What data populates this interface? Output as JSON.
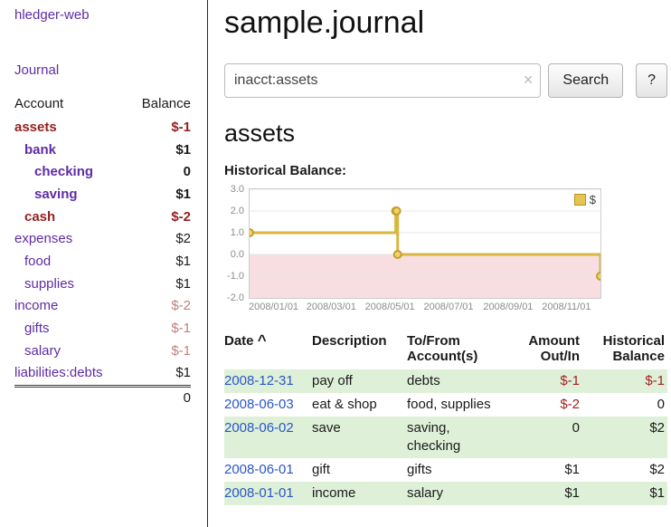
{
  "app": {
    "title": "hledger-web",
    "nav": {
      "journal": "Journal"
    }
  },
  "sidebar": {
    "columns": {
      "account": "Account",
      "balance": "Balance"
    },
    "accounts": [
      {
        "name": "assets",
        "balance": "$-1",
        "indent": 0,
        "bold": true,
        "negative": true
      },
      {
        "name": "bank",
        "balance": "$1",
        "indent": 1,
        "bold": true,
        "negative": false
      },
      {
        "name": "checking",
        "balance": "0",
        "indent": 2,
        "bold": true,
        "negative": false
      },
      {
        "name": "saving",
        "balance": "$1",
        "indent": 2,
        "bold": true,
        "negative": false
      },
      {
        "name": "cash",
        "balance": "$-2",
        "indent": 1,
        "bold": true,
        "negative": true
      },
      {
        "name": "expenses",
        "balance": "$2",
        "indent": 0,
        "bold": false,
        "negative": false
      },
      {
        "name": "food",
        "balance": "$1",
        "indent": 1,
        "bold": false,
        "negative": false
      },
      {
        "name": "supplies",
        "balance": "$1",
        "indent": 1,
        "bold": false,
        "negative": false
      },
      {
        "name": "income",
        "balance": "$-2",
        "indent": 0,
        "bold": false,
        "negative": true
      },
      {
        "name": "gifts",
        "balance": "$-1",
        "indent": 1,
        "bold": false,
        "negative": true
      },
      {
        "name": "salary",
        "balance": "$-1",
        "indent": 1,
        "bold": false,
        "negative": true
      },
      {
        "name": "liabilities:debts",
        "balance": "$1",
        "indent": 0,
        "bold": false,
        "negative": false
      }
    ],
    "total": "0"
  },
  "main": {
    "title": "sample.journal",
    "search": {
      "value": "inacct:assets",
      "clear_icon": "×",
      "button": "Search",
      "help_button": "?"
    },
    "account_heading": "assets",
    "chart_title": "Historical Balance:"
  },
  "chart_data": {
    "type": "line",
    "step": true,
    "title": "Historical Balance",
    "series": [
      {
        "name": "$",
        "color": "#d8b73f",
        "x": [
          "2008-01-01",
          "2008-06-01",
          "2008-06-02",
          "2008-06-03",
          "2008-12-31"
        ],
        "values": [
          1,
          2,
          2,
          0,
          -1
        ]
      }
    ],
    "xlim": [
      "2008-01-01",
      "2008-12-31"
    ],
    "ylim": [
      -2,
      3
    ],
    "yticks": [
      3,
      2,
      1,
      0,
      -1,
      -2
    ],
    "ytick_labels": [
      "3.0",
      "2.0",
      "1.0",
      "0.0",
      "-1.0",
      "-2.0"
    ],
    "xtick_labels": [
      "2008/01/01",
      "2008/03/01",
      "2008/05/01",
      "2008/07/01",
      "2008/09/01",
      "2008/11/01"
    ],
    "legend_position": "top-right",
    "grid": true,
    "negative_region": true
  },
  "register": {
    "headers": {
      "date": "Date",
      "sort_icon": "^",
      "description": "Description",
      "account": "To/From Account(s)",
      "amount": "Amount Out/In",
      "balance": "Historical Balance"
    },
    "rows": [
      {
        "date": "2008-12-31",
        "description": "pay off",
        "account": "debts",
        "amount": "$-1",
        "amount_negative": true,
        "balance": "$-1",
        "balance_negative": true,
        "highlighted": true
      },
      {
        "date": "2008-06-03",
        "description": "eat & shop",
        "account": "food, supplies",
        "amount": "$-2",
        "amount_negative": true,
        "balance": "0",
        "balance_negative": false,
        "highlighted": false
      },
      {
        "date": "2008-06-02",
        "description": "save",
        "account": "saving, checking",
        "amount": "0",
        "amount_negative": false,
        "balance": "$2",
        "balance_negative": false,
        "highlighted": true
      },
      {
        "date": "2008-06-01",
        "description": "gift",
        "account": "gifts",
        "amount": "$1",
        "amount_negative": false,
        "balance": "$2",
        "balance_negative": false,
        "highlighted": false
      },
      {
        "date": "2008-01-01",
        "description": "income",
        "account": "salary",
        "amount": "$1",
        "amount_negative": false,
        "balance": "$1",
        "balance_negative": false,
        "highlighted": true
      }
    ]
  },
  "colors": {
    "accent_purple": "#5e2ca5",
    "negative_strong": "#941f1f",
    "negative_soft": "#c1807d",
    "table_negative": "#a52121",
    "row_highlight": "#dff0d8",
    "date_link": "#2956c8",
    "chart_line": "#d8b73f",
    "chart_marker_fill": "#f2d36b",
    "chart_negative_fill": "#f8dee0"
  }
}
